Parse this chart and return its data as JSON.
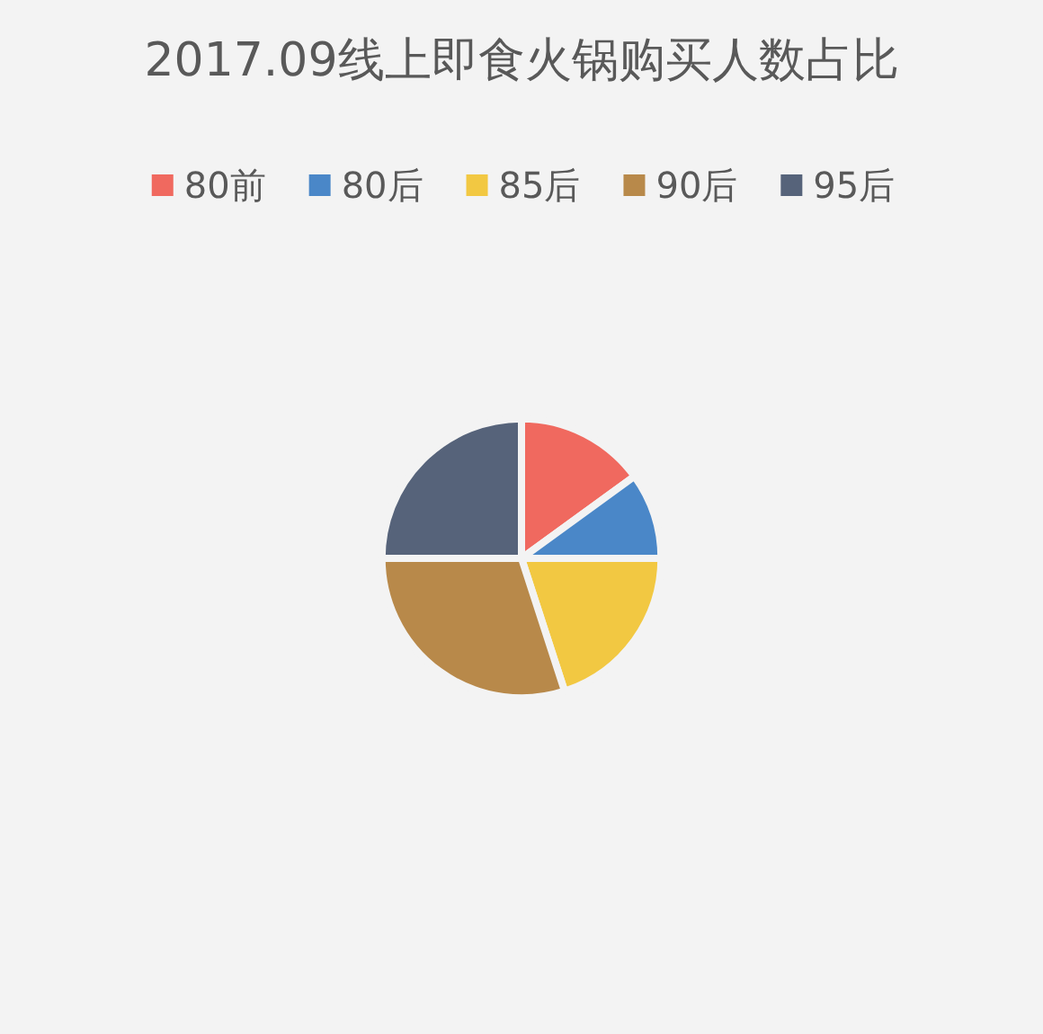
{
  "chart_data": {
    "type": "pie",
    "title": "2017.09线上即食火锅购买人数占比",
    "categories": [
      "80前",
      "80后",
      "85后",
      "90后",
      "95后"
    ],
    "values": [
      15,
      10,
      20,
      30,
      25
    ],
    "colors": [
      "#f0695f",
      "#4a87c8",
      "#f2c842",
      "#b8894a",
      "#56637a"
    ],
    "legend": "top"
  }
}
